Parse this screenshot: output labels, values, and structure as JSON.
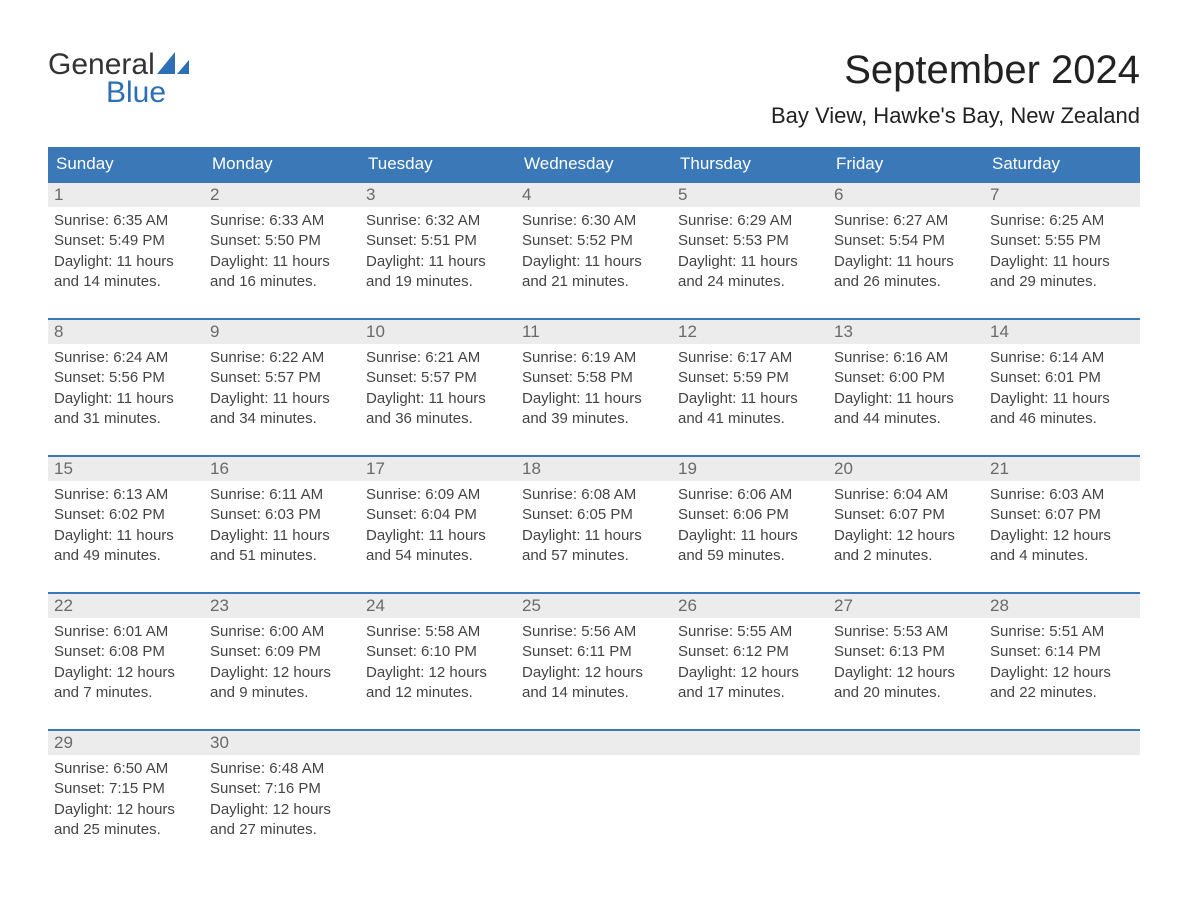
{
  "brand": {
    "word1": "General",
    "word2": "Blue",
    "sail_color": "#2d6fb5",
    "text_color": "#333333"
  },
  "title": "September 2024",
  "location": "Bay View, Hawke's Bay, New Zealand",
  "colors": {
    "header_bg": "#3a78b8",
    "header_text": "#ffffff",
    "daynum_bg": "#ececec",
    "daynum_text": "#6a6a6a",
    "body_text": "#444444",
    "rule": "#3a78b8",
    "page_bg": "#ffffff"
  },
  "day_names": [
    "Sunday",
    "Monday",
    "Tuesday",
    "Wednesday",
    "Thursday",
    "Friday",
    "Saturday"
  ],
  "weeks": [
    [
      {
        "n": "1",
        "sunrise": "Sunrise: 6:35 AM",
        "sunset": "Sunset: 5:49 PM",
        "dl1": "Daylight: 11 hours",
        "dl2": "and 14 minutes."
      },
      {
        "n": "2",
        "sunrise": "Sunrise: 6:33 AM",
        "sunset": "Sunset: 5:50 PM",
        "dl1": "Daylight: 11 hours",
        "dl2": "and 16 minutes."
      },
      {
        "n": "3",
        "sunrise": "Sunrise: 6:32 AM",
        "sunset": "Sunset: 5:51 PM",
        "dl1": "Daylight: 11 hours",
        "dl2": "and 19 minutes."
      },
      {
        "n": "4",
        "sunrise": "Sunrise: 6:30 AM",
        "sunset": "Sunset: 5:52 PM",
        "dl1": "Daylight: 11 hours",
        "dl2": "and 21 minutes."
      },
      {
        "n": "5",
        "sunrise": "Sunrise: 6:29 AM",
        "sunset": "Sunset: 5:53 PM",
        "dl1": "Daylight: 11 hours",
        "dl2": "and 24 minutes."
      },
      {
        "n": "6",
        "sunrise": "Sunrise: 6:27 AM",
        "sunset": "Sunset: 5:54 PM",
        "dl1": "Daylight: 11 hours",
        "dl2": "and 26 minutes."
      },
      {
        "n": "7",
        "sunrise": "Sunrise: 6:25 AM",
        "sunset": "Sunset: 5:55 PM",
        "dl1": "Daylight: 11 hours",
        "dl2": "and 29 minutes."
      }
    ],
    [
      {
        "n": "8",
        "sunrise": "Sunrise: 6:24 AM",
        "sunset": "Sunset: 5:56 PM",
        "dl1": "Daylight: 11 hours",
        "dl2": "and 31 minutes."
      },
      {
        "n": "9",
        "sunrise": "Sunrise: 6:22 AM",
        "sunset": "Sunset: 5:57 PM",
        "dl1": "Daylight: 11 hours",
        "dl2": "and 34 minutes."
      },
      {
        "n": "10",
        "sunrise": "Sunrise: 6:21 AM",
        "sunset": "Sunset: 5:57 PM",
        "dl1": "Daylight: 11 hours",
        "dl2": "and 36 minutes."
      },
      {
        "n": "11",
        "sunrise": "Sunrise: 6:19 AM",
        "sunset": "Sunset: 5:58 PM",
        "dl1": "Daylight: 11 hours",
        "dl2": "and 39 minutes."
      },
      {
        "n": "12",
        "sunrise": "Sunrise: 6:17 AM",
        "sunset": "Sunset: 5:59 PM",
        "dl1": "Daylight: 11 hours",
        "dl2": "and 41 minutes."
      },
      {
        "n": "13",
        "sunrise": "Sunrise: 6:16 AM",
        "sunset": "Sunset: 6:00 PM",
        "dl1": "Daylight: 11 hours",
        "dl2": "and 44 minutes."
      },
      {
        "n": "14",
        "sunrise": "Sunrise: 6:14 AM",
        "sunset": "Sunset: 6:01 PM",
        "dl1": "Daylight: 11 hours",
        "dl2": "and 46 minutes."
      }
    ],
    [
      {
        "n": "15",
        "sunrise": "Sunrise: 6:13 AM",
        "sunset": "Sunset: 6:02 PM",
        "dl1": "Daylight: 11 hours",
        "dl2": "and 49 minutes."
      },
      {
        "n": "16",
        "sunrise": "Sunrise: 6:11 AM",
        "sunset": "Sunset: 6:03 PM",
        "dl1": "Daylight: 11 hours",
        "dl2": "and 51 minutes."
      },
      {
        "n": "17",
        "sunrise": "Sunrise: 6:09 AM",
        "sunset": "Sunset: 6:04 PM",
        "dl1": "Daylight: 11 hours",
        "dl2": "and 54 minutes."
      },
      {
        "n": "18",
        "sunrise": "Sunrise: 6:08 AM",
        "sunset": "Sunset: 6:05 PM",
        "dl1": "Daylight: 11 hours",
        "dl2": "and 57 minutes."
      },
      {
        "n": "19",
        "sunrise": "Sunrise: 6:06 AM",
        "sunset": "Sunset: 6:06 PM",
        "dl1": "Daylight: 11 hours",
        "dl2": "and 59 minutes."
      },
      {
        "n": "20",
        "sunrise": "Sunrise: 6:04 AM",
        "sunset": "Sunset: 6:07 PM",
        "dl1": "Daylight: 12 hours",
        "dl2": "and 2 minutes."
      },
      {
        "n": "21",
        "sunrise": "Sunrise: 6:03 AM",
        "sunset": "Sunset: 6:07 PM",
        "dl1": "Daylight: 12 hours",
        "dl2": "and 4 minutes."
      }
    ],
    [
      {
        "n": "22",
        "sunrise": "Sunrise: 6:01 AM",
        "sunset": "Sunset: 6:08 PM",
        "dl1": "Daylight: 12 hours",
        "dl2": "and 7 minutes."
      },
      {
        "n": "23",
        "sunrise": "Sunrise: 6:00 AM",
        "sunset": "Sunset: 6:09 PM",
        "dl1": "Daylight: 12 hours",
        "dl2": "and 9 minutes."
      },
      {
        "n": "24",
        "sunrise": "Sunrise: 5:58 AM",
        "sunset": "Sunset: 6:10 PM",
        "dl1": "Daylight: 12 hours",
        "dl2": "and 12 minutes."
      },
      {
        "n": "25",
        "sunrise": "Sunrise: 5:56 AM",
        "sunset": "Sunset: 6:11 PM",
        "dl1": "Daylight: 12 hours",
        "dl2": "and 14 minutes."
      },
      {
        "n": "26",
        "sunrise": "Sunrise: 5:55 AM",
        "sunset": "Sunset: 6:12 PM",
        "dl1": "Daylight: 12 hours",
        "dl2": "and 17 minutes."
      },
      {
        "n": "27",
        "sunrise": "Sunrise: 5:53 AM",
        "sunset": "Sunset: 6:13 PM",
        "dl1": "Daylight: 12 hours",
        "dl2": "and 20 minutes."
      },
      {
        "n": "28",
        "sunrise": "Sunrise: 5:51 AM",
        "sunset": "Sunset: 6:14 PM",
        "dl1": "Daylight: 12 hours",
        "dl2": "and 22 minutes."
      }
    ],
    [
      {
        "n": "29",
        "sunrise": "Sunrise: 6:50 AM",
        "sunset": "Sunset: 7:15 PM",
        "dl1": "Daylight: 12 hours",
        "dl2": "and 25 minutes."
      },
      {
        "n": "30",
        "sunrise": "Sunrise: 6:48 AM",
        "sunset": "Sunset: 7:16 PM",
        "dl1": "Daylight: 12 hours",
        "dl2": "and 27 minutes."
      },
      {
        "n": "",
        "sunrise": "",
        "sunset": "",
        "dl1": "",
        "dl2": ""
      },
      {
        "n": "",
        "sunrise": "",
        "sunset": "",
        "dl1": "",
        "dl2": ""
      },
      {
        "n": "",
        "sunrise": "",
        "sunset": "",
        "dl1": "",
        "dl2": ""
      },
      {
        "n": "",
        "sunrise": "",
        "sunset": "",
        "dl1": "",
        "dl2": ""
      },
      {
        "n": "",
        "sunrise": "",
        "sunset": "",
        "dl1": "",
        "dl2": ""
      }
    ]
  ]
}
